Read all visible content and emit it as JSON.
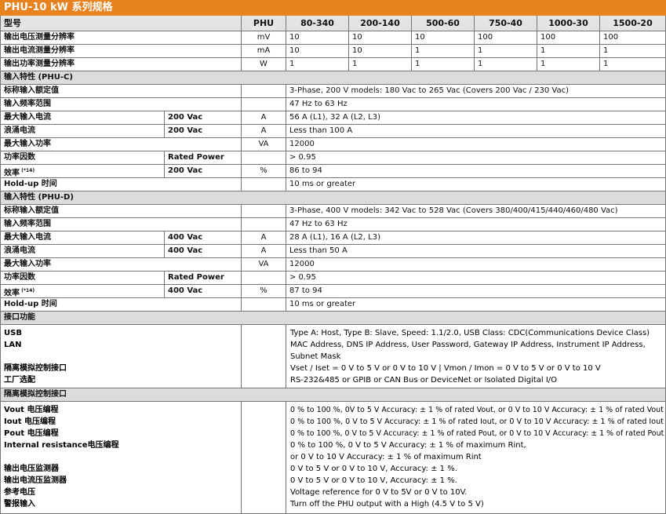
{
  "title": "PHU-10 kW 系列规格",
  "header": [
    "型号",
    "PHU",
    "80-340",
    "200-140",
    "500-60",
    "750-40",
    "1000-30",
    "1500-20"
  ],
  "resolution_rows": [
    {
      "label": "输出电压测量分辨率",
      "unit": "mV",
      "values": [
        "10",
        "10",
        "10",
        "100",
        "100",
        "100"
      ]
    },
    {
      "label": "输出电流测量分辨率",
      "unit": "mA",
      "values": [
        "10",
        "10",
        "1",
        "1",
        "1",
        "1"
      ]
    },
    {
      "label": "输出功率测量分辨率",
      "unit": "W",
      "values": [
        "1",
        "1",
        "1",
        "1",
        "1",
        "1"
      ]
    }
  ],
  "sections": [
    {
      "title": "输入特性 (PHU-C)",
      "rows": [
        {
          "label": "标称输入额定值",
          "value": "3-Phase, 200 V models: 180 Vac to 265 Vac (Covers 200 Vac / 230 Vac)"
        },
        {
          "label": "输入频率范围",
          "value": "47 Hz to 63 Hz"
        },
        {
          "label": "最大输入电流",
          "condition": "200 Vac",
          "unit": "A",
          "value": "56 A (L1), 32 A (L2, L3)"
        },
        {
          "label": "浪涌电流",
          "condition": "200 Vac",
          "unit": "A",
          "value": "Less than 100 A"
        },
        {
          "label": "最大输入功率",
          "unit": "VA",
          "value": "12000"
        },
        {
          "label": "功率因数",
          "condition": "Rated Power",
          "value": "> 0.95"
        },
        {
          "label": "效率",
          "note": "(*14)",
          "condition": "200 Vac",
          "unit": "%",
          "value": "86 to 94"
        },
        {
          "label": "Hold-up 时间",
          "value": "10 ms or greater"
        }
      ]
    },
    {
      "title": "输入特性 (PHU-D)",
      "rows": [
        {
          "label": "标称输入额定值",
          "value": "3-Phase, 400 V models: 342 Vac to 528 Vac (Covers 380/400/415/440/460/480 Vac)"
        },
        {
          "label": "输入频率范围",
          "value": "47 Hz to 63 Hz"
        },
        {
          "label": "最大输入电流",
          "condition": "400 Vac",
          "unit": "A",
          "value": "28 A (L1), 16 A (L2, L3)"
        },
        {
          "label": "浪涌电流",
          "condition": "400 Vac",
          "unit": "A",
          "value": "Less than 50 A"
        },
        {
          "label": "最大输入功率",
          "unit": "VA",
          "value": "12000"
        },
        {
          "label": "功率因数",
          "condition": "Rated Power",
          "value": "> 0.95"
        },
        {
          "label": "效率",
          "note": "(*14)",
          "condition": "400 Vac",
          "unit": "%",
          "value": "87 to 94"
        },
        {
          "label": "Hold-up 时间",
          "value": "10 ms or greater"
        }
      ]
    }
  ],
  "blocks": [
    {
      "title": "接口功能",
      "lines": [
        {
          "label": "USB",
          "text": "Type A: Host, Type B: Slave, Speed: 1.1/2.0, USB Class: CDC(Communications Device Class)"
        },
        {
          "label": "LAN",
          "text": "MAC Address, DNS IP Address, User Password, Gateway IP Address, Instrument IP Address,"
        },
        {
          "text": "Subnet Mask"
        },
        {
          "label": "隔离模拟控制接口",
          "text": "Vset / Iset = 0 V to 5 V or 0 V to 10 V | Vmon / Imon = 0 V to 5 V or 0 V to 10 V"
        },
        {
          "label": "工厂选配",
          "text": "RS-232&485 or GPIB or CAN Bus or DeviceNet or Isolated Digital I/O"
        }
      ]
    },
    {
      "title": "隔离模拟控制接口",
      "lines": [
        {
          "label": "Vout 电压编程",
          "text": "0 % to 100 %, 0V to 5 V Accuracy: ± 1 % of rated Vout, or 0 V to 10 V Accuracy: ± 1 % of rated Vout"
        },
        {
          "label": "Iout 电压编程",
          "text": "0 % to 100 %, 0 V to 5 V Accuracy: ± 1 % of rated Iout, or 0 V to 10 V Accuracy: ± 1 % of rated Iout"
        },
        {
          "label": "Pout 电压编程",
          "text": "0 % to 100 %, 0 V to 5 V Accuracy: ± 1 % of rated Pout, or 0 V to 10 V Accuracy: ± 1 % of rated Pout"
        },
        {
          "label": "Internal resistance电压编程",
          "text": "0 % to 100 %, 0 V to 5 V Accuracy: ± 1 % of maximum Rint,"
        },
        {
          "text": "or 0 V to 10 V Accuracy: ± 1 % of maximum Rint"
        },
        {
          "label": "输出电压监测器",
          "text": "0 V to 5 V or 0 V to 10 V, Accuracy: ± 1 %."
        },
        {
          "label": "输出电流压监测器",
          "text": "0 V to 5 V or 0 V to 10 V, Accuracy: ± 1 %."
        },
        {
          "label": "参考电压",
          "text": "Voltage reference for 0 V to 5V or 0 V to 10V."
        },
        {
          "label": "警报输入",
          "text": "Turn off the PHU output with a High (4.5 V to 5 V)"
        }
      ]
    }
  ]
}
